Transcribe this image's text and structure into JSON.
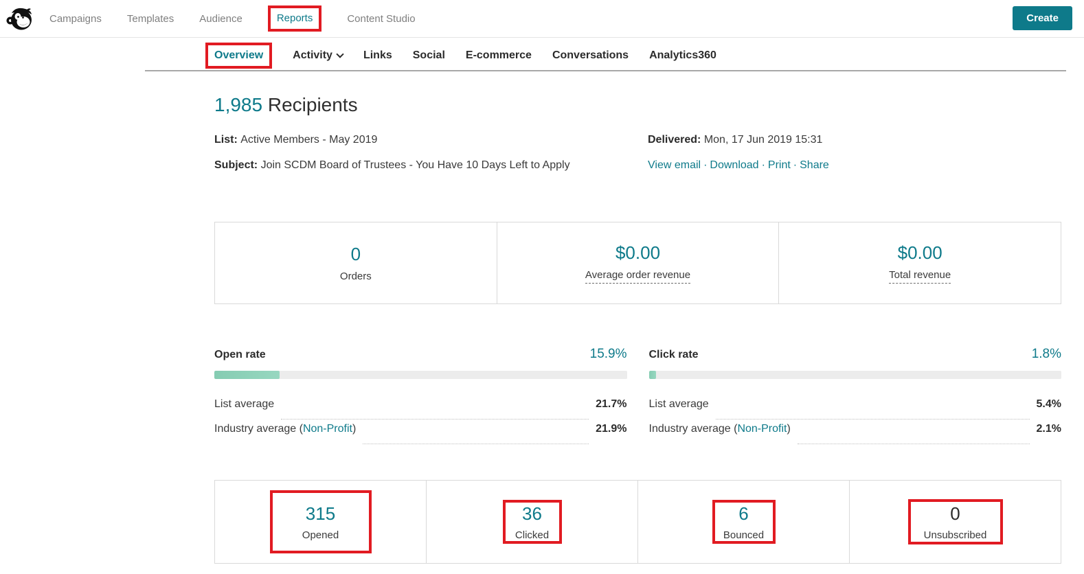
{
  "colors": {
    "accent": "#0e7a8a",
    "annotation_red": "#e11b22",
    "bar_fill": "#8ed1b8",
    "bar_track": "#ececec",
    "unsubscribed_value_color": "#2b2b2b"
  },
  "top_nav": {
    "items": [
      {
        "label": "Campaigns"
      },
      {
        "label": "Templates"
      },
      {
        "label": "Audience"
      },
      {
        "label": "Reports",
        "active": true,
        "annotated": true
      },
      {
        "label": "Content Studio"
      }
    ],
    "create_label": "Create",
    "logo": "mailchimp-freddie-icon"
  },
  "report_nav": {
    "tabs": [
      {
        "label": "Overview",
        "active": true,
        "annotated": true
      },
      {
        "label": "Activity",
        "has_dropdown": true
      },
      {
        "label": "Links"
      },
      {
        "label": "Social"
      },
      {
        "label": "E-commerce"
      },
      {
        "label": "Conversations"
      },
      {
        "label": "Analytics360"
      }
    ]
  },
  "header": {
    "recipient_count": "1,985",
    "recipient_label": " Recipients"
  },
  "meta": {
    "list_label": "List: ",
    "list_value": "Active Members - May 2019",
    "subject_label": "Subject: ",
    "subject_value": "Join SCDM Board of Trustees - You Have 10 Days Left to Apply",
    "delivered_label": "Delivered: ",
    "delivered_value": "Mon, 17 Jun 2019 15:31",
    "links": {
      "view_email": "View email",
      "download": "Download",
      "print": "Print",
      "share": "Share"
    },
    "link_separator": "·"
  },
  "ecommerce_stats": {
    "cells": [
      {
        "value": "0",
        "label": "Orders",
        "underlined": false
      },
      {
        "value": "$0.00",
        "label": "Average order revenue",
        "underlined": true
      },
      {
        "value": "$0.00",
        "label": "Total revenue",
        "underlined": true
      }
    ]
  },
  "rates": [
    {
      "title": "Open rate",
      "value": "15.9%",
      "percent": 15.9,
      "rows": [
        {
          "label": "List average",
          "value": "21.7%"
        },
        {
          "label_prefix": "Industry average (",
          "label_link": "Non-Profit",
          "label_suffix": ")",
          "value": "21.9%"
        }
      ]
    },
    {
      "title": "Click rate",
      "value": "1.8%",
      "percent": 1.8,
      "rows": [
        {
          "label": "List average",
          "value": "5.4%"
        },
        {
          "label_prefix": "Industry average (",
          "label_link": "Non-Profit",
          "label_suffix": ")",
          "value": "2.1%"
        }
      ]
    }
  ],
  "engagement_stats": {
    "cells": [
      {
        "value": "315",
        "label": "Opened",
        "annotated": true,
        "value_color": "#0e7a8a"
      },
      {
        "value": "36",
        "label": "Clicked",
        "annotated": true,
        "value_color": "#0e7a8a"
      },
      {
        "value": "6",
        "label": "Bounced",
        "annotated": true,
        "value_color": "#0e7a8a"
      },
      {
        "value": "0",
        "label": "Unsubscribed",
        "annotated": true,
        "value_color": "#2b2b2b"
      }
    ]
  }
}
